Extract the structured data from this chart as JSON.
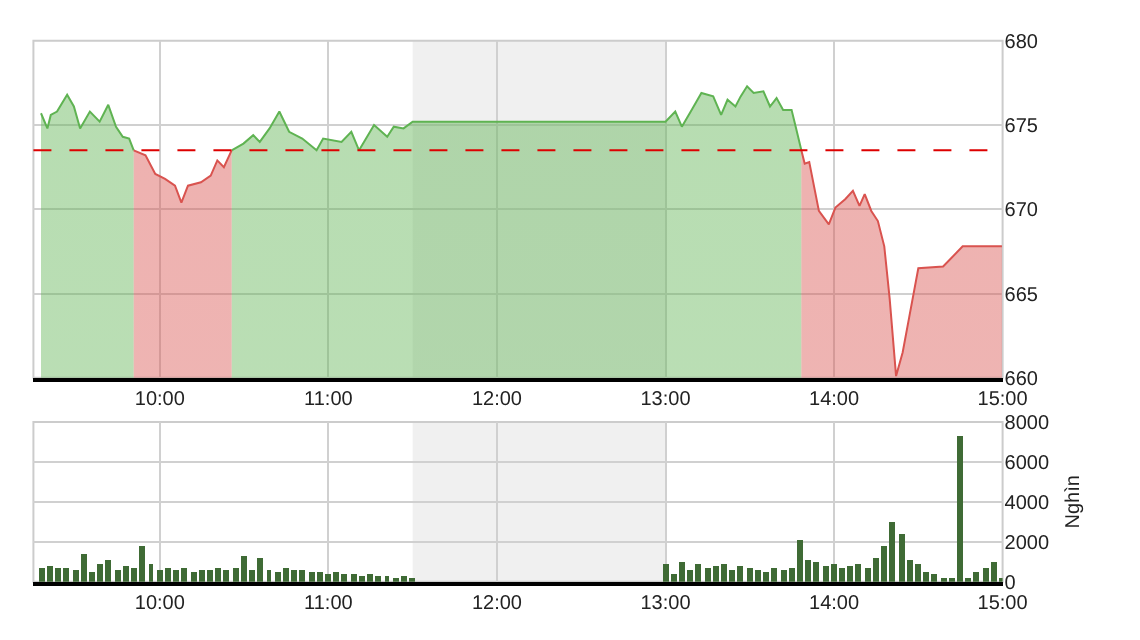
{
  "chart_data": [
    {
      "type": "area",
      "xlim": [
        9.25,
        15
      ],
      "xticks": [
        {
          "value": 10,
          "label": "10:00"
        },
        {
          "value": 11,
          "label": "11:00"
        },
        {
          "value": 12,
          "label": "12:00"
        },
        {
          "value": 13,
          "label": "13:00"
        },
        {
          "value": 14,
          "label": "14:00"
        },
        {
          "value": 15,
          "label": "15:00"
        }
      ],
      "ylim": [
        660,
        680
      ],
      "yticks": [
        660,
        665,
        670,
        675,
        680
      ],
      "grid": true,
      "series": [
        {
          "color": "#5fb352",
          "x": [
            9.295,
            9.333,
            9.353,
            9.39,
            9.45,
            9.49,
            9.527,
            9.585,
            9.643,
            9.694,
            9.74,
            9.78,
            9.818,
            9.845,
            10.1,
            10.426,
            10.496,
            10.554,
            10.593,
            10.651,
            10.709,
            10.767,
            10.845,
            10.93,
            10.969,
            11.078,
            11.136,
            11.182,
            11.271,
            11.349,
            11.388,
            11.446,
            11.5,
            13.0,
            13.058,
            13.097,
            13.155,
            13.213,
            13.283,
            13.33,
            13.368,
            13.415,
            13.446,
            13.484,
            13.523,
            13.581,
            13.62,
            13.659,
            13.698,
            13.748,
            13.775,
            13.806
          ],
          "values": [
            675.7,
            674.8,
            675.6,
            675.8,
            676.8,
            676.1,
            674.8,
            675.8,
            675.2,
            676.2,
            674.9,
            674.3,
            674.2,
            673.5,
            null,
            673.5,
            673.9,
            674.4,
            674.0,
            674.8,
            675.8,
            674.6,
            674.2,
            673.5,
            674.2,
            674.0,
            674.6,
            673.5,
            675.0,
            674.3,
            674.9,
            674.8,
            675.2,
            675.2,
            675.8,
            674.9,
            675.9,
            676.9,
            676.7,
            675.6,
            676.5,
            676.1,
            676.7,
            677.3,
            676.9,
            677.0,
            676.1,
            676.6,
            675.9,
            675.9,
            674.8,
            673.5
          ]
        },
        {
          "color": "#d9534f",
          "x": [
            9.845,
            9.915,
            9.973,
            10.031,
            10.09,
            10.128,
            10.167,
            10.244,
            10.302,
            10.341,
            10.38,
            10.426,
            12.0,
            13.806,
            13.826,
            13.853,
            13.91,
            13.969,
            14.008,
            14.066,
            14.112,
            14.151,
            14.182,
            14.221,
            14.26,
            14.298,
            14.33,
            14.368,
            14.407,
            14.446,
            14.5,
            14.647,
            14.763,
            14.996
          ],
          "values": [
            673.5,
            673.2,
            672.1,
            671.8,
            671.4,
            670.4,
            671.4,
            671.6,
            672.0,
            672.9,
            672.5,
            673.5,
            null,
            673.5,
            672.7,
            672.8,
            669.9,
            669.1,
            670.1,
            670.6,
            671.1,
            670.2,
            670.9,
            669.9,
            669.3,
            667.8,
            664.7,
            660.1,
            661.5,
            663.6,
            666.5,
            666.6,
            667.8,
            667.8
          ]
        }
      ],
      "ref_lines": [
        {
          "axis": "y",
          "value": 673.5,
          "color": "#dd0000",
          "line_style": "dashed"
        }
      ],
      "bands": [
        {
          "axis": "x",
          "from": 11.5,
          "to": 13,
          "color": "#f0f0f0"
        }
      ]
    },
    {
      "type": "bar",
      "ylabel": "Nghìn",
      "xlim": [
        9.25,
        15
      ],
      "xticks": [
        {
          "value": 10,
          "label": "10:00"
        },
        {
          "value": 11,
          "label": "11:00"
        },
        {
          "value": 12,
          "label": "12:00"
        },
        {
          "value": 13,
          "label": "13:00"
        },
        {
          "value": 14,
          "label": "14:00"
        },
        {
          "value": 15,
          "label": "15:00"
        }
      ],
      "ylim": [
        0,
        8000
      ],
      "yticks": [
        0,
        2000,
        4000,
        6000,
        8000
      ],
      "grid": true,
      "series": [
        {
          "color": "#3f6b35",
          "x": [
            9.3,
            9.35,
            9.4,
            9.45,
            9.5,
            9.55,
            9.6,
            9.65,
            9.7,
            9.75,
            9.8,
            9.85,
            9.9,
            9.95,
            10.0,
            10.05,
            10.1,
            10.15,
            10.2,
            10.25,
            10.3,
            10.35,
            10.4,
            10.45,
            10.5,
            10.55,
            10.6,
            10.65,
            10.7,
            10.75,
            10.8,
            10.85,
            10.9,
            10.95,
            11.0,
            11.05,
            11.1,
            11.15,
            11.2,
            11.25,
            11.3,
            11.35,
            11.4,
            11.45,
            11.5,
            13.0,
            13.05,
            13.1,
            13.15,
            13.2,
            13.25,
            13.3,
            13.35,
            13.4,
            13.45,
            13.5,
            13.55,
            13.6,
            13.65,
            13.7,
            13.75,
            13.8,
            13.85,
            13.9,
            13.95,
            14.0,
            14.05,
            14.1,
            14.15,
            14.2,
            14.25,
            14.3,
            14.35,
            14.4,
            14.45,
            14.5,
            14.55,
            14.6,
            14.65,
            14.7,
            14.75,
            14.8,
            14.85,
            14.9,
            14.95,
            15.0
          ],
          "values": [
            700,
            800,
            700,
            700,
            600,
            1400,
            500,
            900,
            1100,
            600,
            800,
            700,
            1800,
            900,
            600,
            700,
            600,
            700,
            500,
            600,
            600,
            700,
            600,
            700,
            1300,
            600,
            1200,
            600,
            500,
            700,
            600,
            600,
            500,
            500,
            400,
            500,
            400,
            400,
            300,
            400,
            300,
            300,
            200,
            300,
            200,
            900,
            400,
            1000,
            600,
            900,
            700,
            800,
            900,
            600,
            800,
            700,
            600,
            500,
            700,
            600,
            700,
            2100,
            1100,
            1000,
            800,
            900,
            700,
            800,
            900,
            700,
            1200,
            1800,
            3000,
            2400,
            1100,
            900,
            500,
            400,
            200,
            100,
            7300,
            100,
            500,
            700,
            1000,
            200
          ]
        }
      ],
      "bands": [
        {
          "axis": "x",
          "from": 11.5,
          "to": 13,
          "color": "#f0f0f0"
        }
      ]
    }
  ]
}
